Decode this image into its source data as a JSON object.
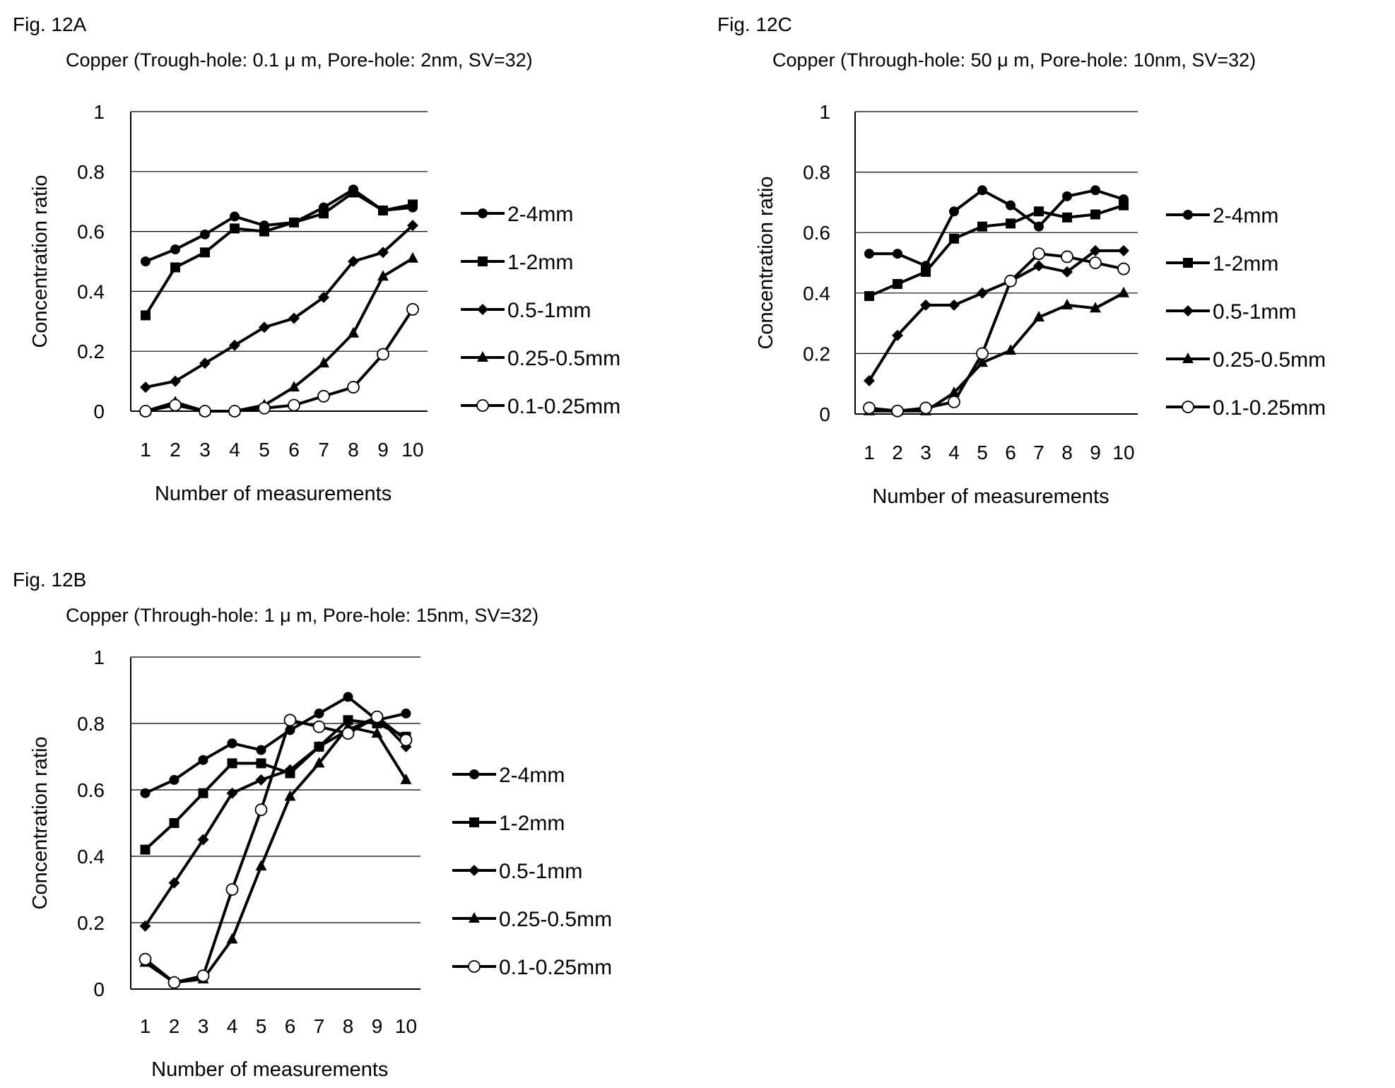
{
  "chart_data": [
    {
      "figure_label": "Fig. 12A",
      "type": "line",
      "title": "Copper (Trough-hole: 0.1 μ m, Pore-hole: 2nm, SV=32)",
      "xlabel": "Number of measurements",
      "ylabel": "Concentration ratio",
      "x": [
        1,
        2,
        3,
        4,
        5,
        6,
        7,
        8,
        9,
        10
      ],
      "ylim": [
        0,
        1
      ],
      "yticks": [
        "0",
        "0.2",
        "0.4",
        "0.6",
        "0.8",
        "1"
      ],
      "grid": "horizontal",
      "legend_position": "right",
      "series": [
        {
          "name": "2-4mm",
          "marker": "circle-filled",
          "values": [
            0.5,
            0.54,
            0.59,
            0.65,
            0.62,
            0.63,
            0.68,
            0.74,
            0.67,
            0.68
          ]
        },
        {
          "name": "1-2mm",
          "marker": "square-filled",
          "values": [
            0.32,
            0.48,
            0.53,
            0.61,
            0.6,
            0.63,
            0.66,
            0.73,
            0.67,
            0.69
          ]
        },
        {
          "name": "0.5-1mm",
          "marker": "diamond-filled",
          "values": [
            0.08,
            0.1,
            0.16,
            0.22,
            0.28,
            0.31,
            0.38,
            0.5,
            0.53,
            0.62
          ]
        },
        {
          "name": "0.25-0.5mm",
          "marker": "triangle-filled",
          "values": [
            0.0,
            0.03,
            0.0,
            0.0,
            0.02,
            0.08,
            0.16,
            0.26,
            0.45,
            0.51
          ]
        },
        {
          "name": "0.1-0.25mm",
          "marker": "circle-open",
          "values": [
            0.0,
            0.02,
            0.0,
            0.0,
            0.01,
            0.02,
            0.05,
            0.08,
            0.19,
            0.34
          ]
        }
      ]
    },
    {
      "figure_label": "Fig. 12C",
      "type": "line",
      "title": "Copper (Through-hole: 50 μ m, Pore-hole: 10nm, SV=32)",
      "xlabel": "Number of measurements",
      "ylabel": "Concentration ratio",
      "x": [
        1,
        2,
        3,
        4,
        5,
        6,
        7,
        8,
        9,
        10
      ],
      "ylim": [
        0,
        1
      ],
      "yticks": [
        "0",
        "0.2",
        "0.4",
        "0.6",
        "0.8",
        "1"
      ],
      "grid": "horizontal",
      "legend_position": "right",
      "series": [
        {
          "name": "2-4mm",
          "marker": "circle-filled",
          "values": [
            0.53,
            0.53,
            0.49,
            0.67,
            0.74,
            0.69,
            0.62,
            0.72,
            0.74,
            0.71
          ]
        },
        {
          "name": "1-2mm",
          "marker": "square-filled",
          "values": [
            0.39,
            0.43,
            0.47,
            0.58,
            0.62,
            0.63,
            0.67,
            0.65,
            0.66,
            0.69
          ]
        },
        {
          "name": "0.5-1mm",
          "marker": "diamond-filled",
          "values": [
            0.11,
            0.26,
            0.36,
            0.36,
            0.4,
            0.44,
            0.49,
            0.47,
            0.54,
            0.54
          ]
        },
        {
          "name": "0.25-0.5mm",
          "marker": "triangle-filled",
          "values": [
            0.01,
            0.01,
            0.01,
            0.07,
            0.17,
            0.21,
            0.32,
            0.36,
            0.35,
            0.4
          ]
        },
        {
          "name": "0.1-0.25mm",
          "marker": "circle-open",
          "values": [
            0.02,
            0.01,
            0.02,
            0.04,
            0.2,
            0.44,
            0.53,
            0.52,
            0.5,
            0.48
          ]
        }
      ]
    },
    {
      "figure_label": "Fig. 12B",
      "type": "line",
      "title": "Copper (Through-hole: 1 μ m, Pore-hole: 15nm, SV=32)",
      "xlabel": "Number of measurements",
      "ylabel": "Concentration ratio",
      "x": [
        1,
        2,
        3,
        4,
        5,
        6,
        7,
        8,
        9,
        10
      ],
      "ylim": [
        0,
        1
      ],
      "yticks": [
        "0",
        "0.2",
        "0.4",
        "0.6",
        "0.8",
        "1"
      ],
      "grid": "horizontal",
      "legend_position": "right",
      "series": [
        {
          "name": "2-4mm",
          "marker": "circle-filled",
          "values": [
            0.59,
            0.63,
            0.69,
            0.74,
            0.72,
            0.78,
            0.83,
            0.88,
            0.81,
            0.83
          ]
        },
        {
          "name": "1-2mm",
          "marker": "square-filled",
          "values": [
            0.42,
            0.5,
            0.59,
            0.68,
            0.68,
            0.65,
            0.73,
            0.81,
            0.8,
            0.76
          ]
        },
        {
          "name": "0.5-1mm",
          "marker": "diamond-filled",
          "values": [
            0.19,
            0.32,
            0.45,
            0.59,
            0.63,
            0.66,
            0.73,
            0.78,
            0.82,
            0.73
          ]
        },
        {
          "name": "0.25-0.5mm",
          "marker": "triangle-filled",
          "values": [
            0.08,
            0.02,
            0.03,
            0.15,
            0.37,
            0.58,
            0.68,
            0.79,
            0.77,
            0.63
          ]
        },
        {
          "name": "0.1-0.25mm",
          "marker": "circle-open",
          "values": [
            0.09,
            0.02,
            0.04,
            0.3,
            0.54,
            0.81,
            0.79,
            0.77,
            0.82,
            0.75
          ]
        }
      ]
    }
  ]
}
